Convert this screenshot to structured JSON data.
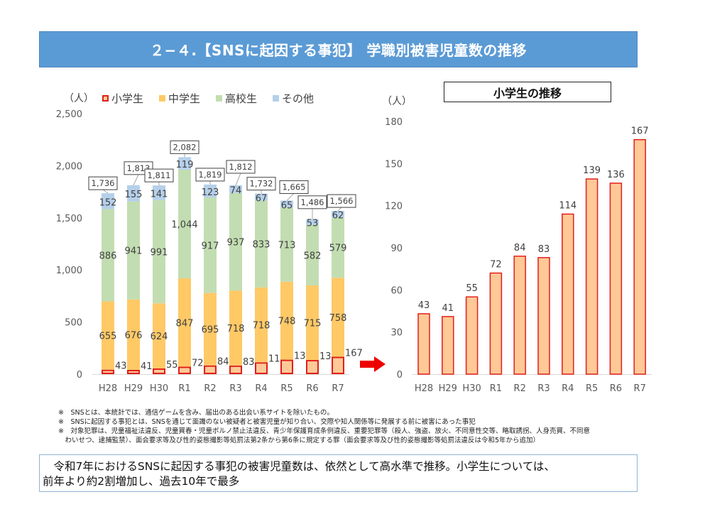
{
  "title": "２−４.【SNSに起因する事犯】 学職別被害児童数の推移",
  "left_chart": {
    "unit_label": "（人）",
    "legend": [
      {
        "name": "小学生",
        "color": "#ffc997",
        "border": "#e0201b"
      },
      {
        "name": "中学生",
        "color": "#ffc966"
      },
      {
        "name": "高校生",
        "color": "#c3ddb2"
      },
      {
        "name": "その他",
        "color": "#b5d0ea"
      }
    ]
  },
  "right_chart": {
    "title": "小学生の推移",
    "unit_label": "（人）"
  },
  "chart_data": [
    {
      "type": "bar",
      "stacked": true,
      "title": "",
      "xlabel": "",
      "ylabel": "（人）",
      "ylim": [
        0,
        2500
      ],
      "yticks": [
        0,
        500,
        1000,
        1500,
        2000,
        2500
      ],
      "ytick_labels": [
        "0",
        "500",
        "1,000",
        "1,500",
        "2,000",
        "2,500"
      ],
      "grid": false,
      "legend_position": "top",
      "categories": [
        "H28",
        "H29",
        "H30",
        "R1",
        "R2",
        "R3",
        "R4",
        "R5",
        "R6",
        "R7"
      ],
      "series": [
        {
          "name": "小学生",
          "values": [
            43,
            41,
            55,
            72,
            84,
            83,
            114,
            139,
            136,
            167
          ],
          "color": "#ffc997",
          "border": "#e0201b"
        },
        {
          "name": "中学生",
          "values": [
            655,
            676,
            624,
            847,
            695,
            718,
            718,
            748,
            715,
            758
          ],
          "color": "#ffc966"
        },
        {
          "name": "高校生",
          "values": [
            886,
            941,
            991,
            1044,
            917,
            937,
            833,
            713,
            582,
            579
          ],
          "color": "#c3ddb2"
        },
        {
          "name": "その他",
          "values": [
            152,
            155,
            141,
            119,
            123,
            74,
            67,
            65,
            53,
            62
          ],
          "color": "#b5d0ea"
        }
      ],
      "value_labels": {
        "小学生": [
          "43",
          "41",
          "55",
          "72",
          "84",
          "83",
          "114",
          "139",
          "136",
          "167"
        ],
        "中学生": [
          "655",
          "676",
          "624",
          "847",
          "695",
          "718",
          "718",
          "748",
          "715",
          "758"
        ],
        "高校生": [
          "886",
          "941",
          "991",
          "1,044",
          "917",
          "937",
          "833",
          "713",
          "582",
          "579"
        ],
        "その他": [
          "152",
          "155",
          "141",
          "119",
          "123",
          "74",
          "67",
          "65",
          "53",
          "62"
        ]
      },
      "totals": [
        1736,
        1813,
        1811,
        2082,
        1819,
        1812,
        1732,
        1665,
        1486,
        1566
      ],
      "total_labels": [
        "1,736",
        "1,813",
        "1,811",
        "2,082",
        "1,819",
        "1,812",
        "1,732",
        "1,665",
        "1,486",
        "1,566"
      ]
    },
    {
      "type": "bar",
      "title": "小学生の推移",
      "xlabel": "",
      "ylabel": "（人）",
      "ylim": [
        0,
        180
      ],
      "yticks": [
        0,
        30,
        60,
        90,
        120,
        150,
        180
      ],
      "ytick_labels": [
        "0",
        "30",
        "60",
        "90",
        "120",
        "150",
        "180"
      ],
      "grid": false,
      "categories": [
        "H28",
        "H29",
        "H30",
        "R1",
        "R2",
        "R3",
        "R4",
        "R5",
        "R6",
        "R7"
      ],
      "values": [
        43,
        41,
        55,
        72,
        84,
        83,
        114,
        139,
        136,
        167
      ],
      "color": "#ffc997",
      "border": "#e0201b"
    }
  ],
  "arrow_color": "#ee0000",
  "notes": [
    "※　SNSとは、本統計では、通信ゲームを含み、届出のある出会い系サイトを除いたもの。",
    "※　SNSに起因する事犯とは、SNSを通じて面識のない被疑者と被害児童が知り合い、交際や知人関係等に発展する前に被害にあった事犯",
    "※　対象犯罪は、児童福祉法違反、児童買春・児童ポルノ禁止法違反、青少年保護育成条例違反、重要犯罪等（殺人、強盗、放火、不同意性交等、略取誘拐、人身売買、不同意",
    "　わいせつ、逮捕監禁）、面会要求等及び性的姿態撮影等処罰法第2条から第6条に規定する罪（面会要求等及び性的姿態撮影等処罰法違反は令和5年から追加）"
  ],
  "summary": {
    "line1": "　令和7年におけるSNSに起因する事犯の被害児童数は、依然として高水準で推移。小学生については、",
    "line2": "前年より約2割増加し、過去10年で最多"
  }
}
